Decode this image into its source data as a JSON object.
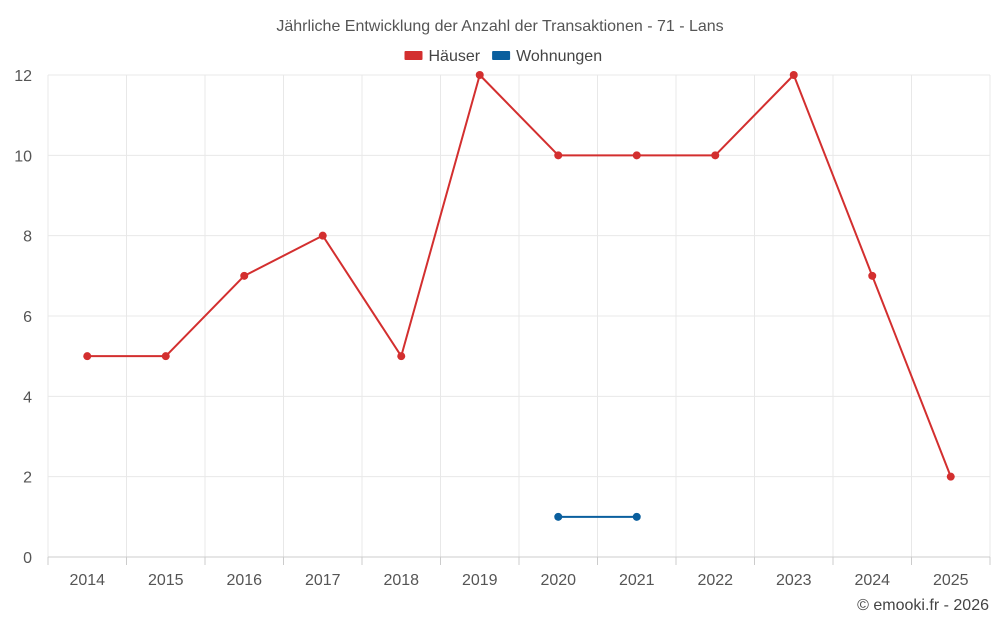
{
  "chart_data": {
    "type": "line",
    "title": "Jährliche Entwicklung der Anzahl der Transaktionen - 71 - Lans",
    "categories": [
      "2014",
      "2015",
      "2016",
      "2017",
      "2018",
      "2019",
      "2020",
      "2021",
      "2022",
      "2023",
      "2024",
      "2025"
    ],
    "series": [
      {
        "name": "Häuser",
        "color": "#d32f2f",
        "values": [
          5,
          5,
          7,
          8,
          5,
          12,
          10,
          10,
          10,
          12,
          7,
          2
        ]
      },
      {
        "name": "Wohnungen",
        "color": "#0a5f9e",
        "values": [
          null,
          null,
          null,
          null,
          null,
          null,
          1,
          1,
          null,
          null,
          null,
          null
        ]
      }
    ],
    "xlabel": "",
    "ylabel": "",
    "ylim": [
      0,
      12
    ],
    "yticks": [
      0,
      2,
      4,
      6,
      8,
      10,
      12
    ],
    "grid": true,
    "legend_position": "top-center"
  },
  "credit": "© emooki.fr - 2026"
}
